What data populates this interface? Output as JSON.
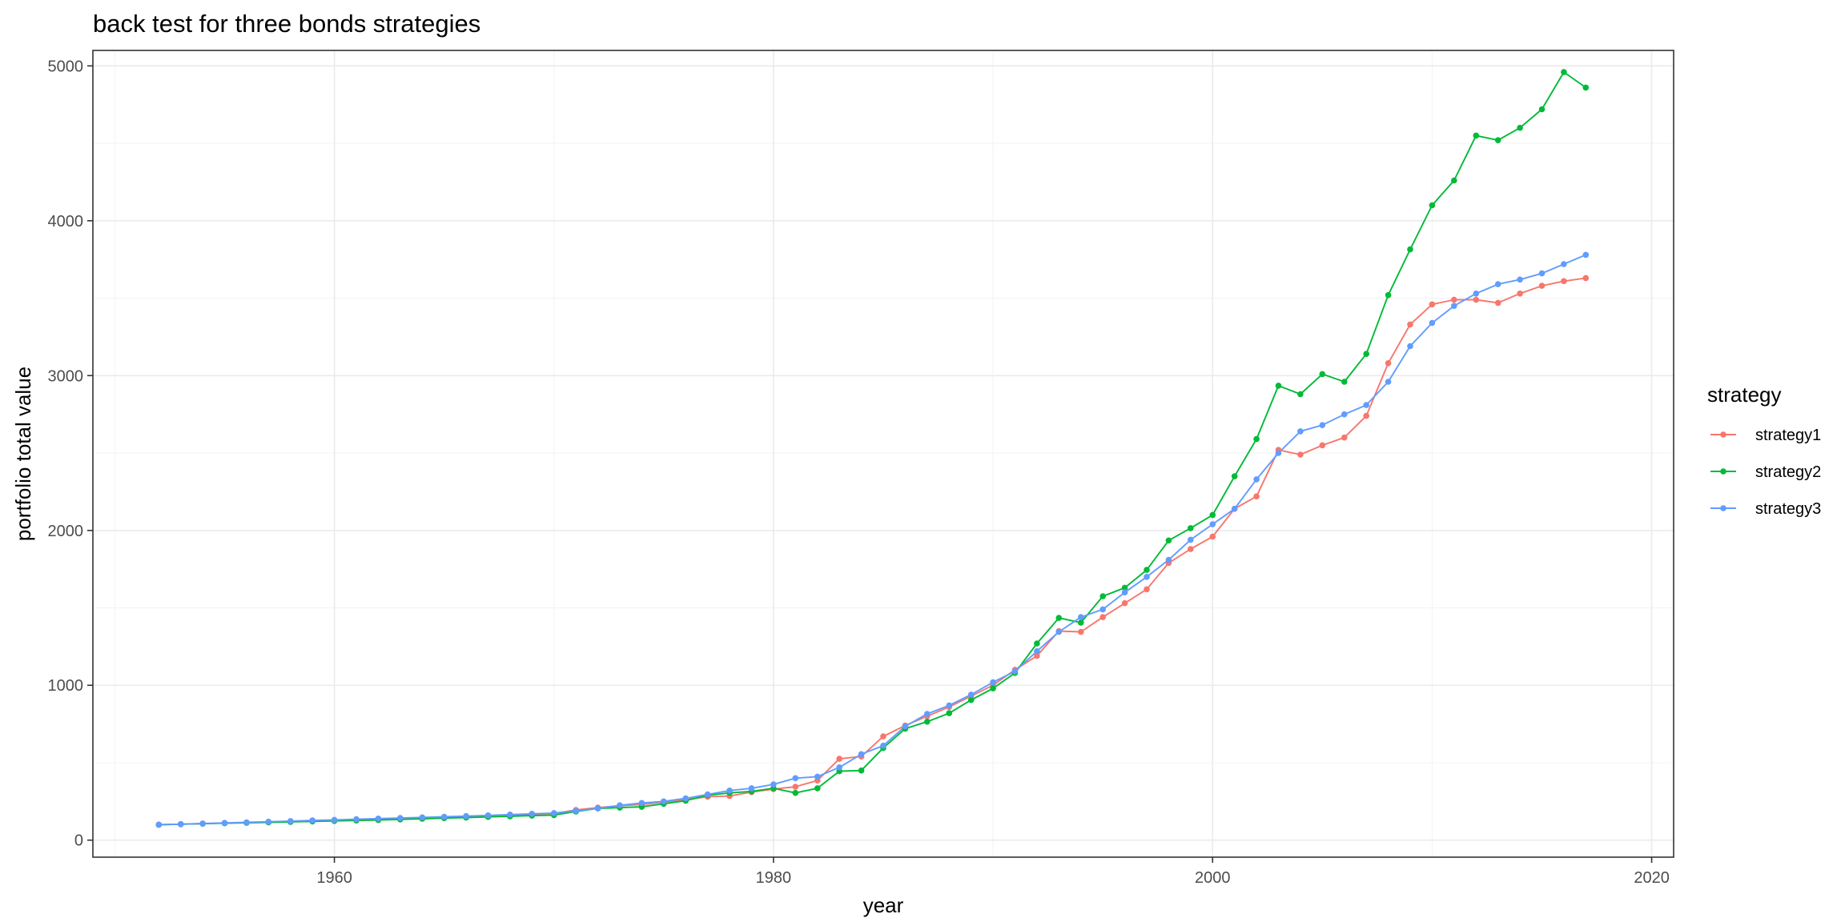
{
  "chart_data": {
    "type": "line",
    "title": "back test for three bonds strategies",
    "xlabel": "year",
    "ylabel": "portfolio total value",
    "xlim": [
      1949,
      2021
    ],
    "ylim": [
      -110,
      5100
    ],
    "xticks": [
      1960,
      1980,
      2000,
      2020
    ],
    "xtick_labels": [
      "1960",
      "1980",
      "2000",
      "2020"
    ],
    "yticks": [
      0,
      1000,
      2000,
      3000,
      4000,
      5000
    ],
    "ytick_labels": [
      "0",
      "1000",
      "2000",
      "3000",
      "4000",
      "5000"
    ],
    "grid": true,
    "legend": {
      "title": "strategy",
      "position": "right"
    },
    "x": [
      1952,
      1953,
      1954,
      1955,
      1956,
      1957,
      1958,
      1959,
      1960,
      1961,
      1962,
      1963,
      1964,
      1965,
      1966,
      1967,
      1968,
      1969,
      1970,
      1971,
      1972,
      1973,
      1974,
      1975,
      1976,
      1977,
      1978,
      1979,
      1980,
      1981,
      1982,
      1983,
      1984,
      1985,
      1986,
      1987,
      1988,
      1989,
      1990,
      1991,
      1992,
      1993,
      1994,
      1995,
      1996,
      1997,
      1998,
      1999,
      2000,
      2001,
      2002,
      2003,
      2004,
      2005,
      2006,
      2007,
      2008,
      2009,
      2010,
      2011,
      2012,
      2013,
      2014,
      2015,
      2016,
      2017
    ],
    "series": [
      {
        "name": "strategy1",
        "color": "#F8766D",
        "values": [
          100,
          103,
          107,
          110,
          113,
          116,
          119,
          122,
          125,
          128,
          131,
          135,
          139,
          144,
          149,
          154,
          160,
          166,
          172,
          195,
          210,
          222,
          230,
          245,
          262,
          280,
          285,
          310,
          330,
          345,
          385,
          525,
          540,
          670,
          740,
          800,
          860,
          930,
          1000,
          1100,
          1190,
          1350,
          1345,
          1440,
          1530,
          1620,
          1790,
          1880,
          1960,
          2140,
          2220,
          2520,
          2490,
          2550,
          2600,
          2740,
          3080,
          3330,
          3460,
          3490,
          3490,
          3470,
          3530,
          3580,
          3610,
          3630
        ]
      },
      {
        "name": "strategy2",
        "color": "#00BA38",
        "values": [
          100,
          103,
          106,
          109,
          112,
          115,
          118,
          121,
          124,
          127,
          130,
          134,
          138,
          142,
          146,
          150,
          154,
          158,
          162,
          185,
          205,
          210,
          215,
          235,
          255,
          290,
          305,
          315,
          335,
          305,
          335,
          445,
          450,
          595,
          720,
          765,
          820,
          905,
          980,
          1080,
          1270,
          1435,
          1405,
          1575,
          1630,
          1745,
          1935,
          2015,
          2100,
          2350,
          2590,
          2935,
          2880,
          3010,
          2960,
          3140,
          3520,
          3815,
          4100,
          4260,
          4550,
          4520,
          4600,
          4720,
          4960,
          4860
        ]
      },
      {
        "name": "strategy3",
        "color": "#619CFF",
        "values": [
          100,
          103,
          107,
          111,
          115,
          119,
          123,
          127,
          131,
          135,
          139,
          143,
          147,
          151,
          155,
          160,
          165,
          170,
          175,
          190,
          205,
          225,
          240,
          250,
          270,
          295,
          320,
          335,
          360,
          400,
          410,
          470,
          555,
          610,
          735,
          815,
          870,
          940,
          1020,
          1090,
          1220,
          1345,
          1440,
          1490,
          1600,
          1700,
          1810,
          1940,
          2040,
          2140,
          2330,
          2500,
          2640,
          2680,
          2750,
          2810,
          2960,
          3190,
          3340,
          3450,
          3530,
          3590,
          3620,
          3660,
          3720,
          3780
        ]
      }
    ]
  }
}
